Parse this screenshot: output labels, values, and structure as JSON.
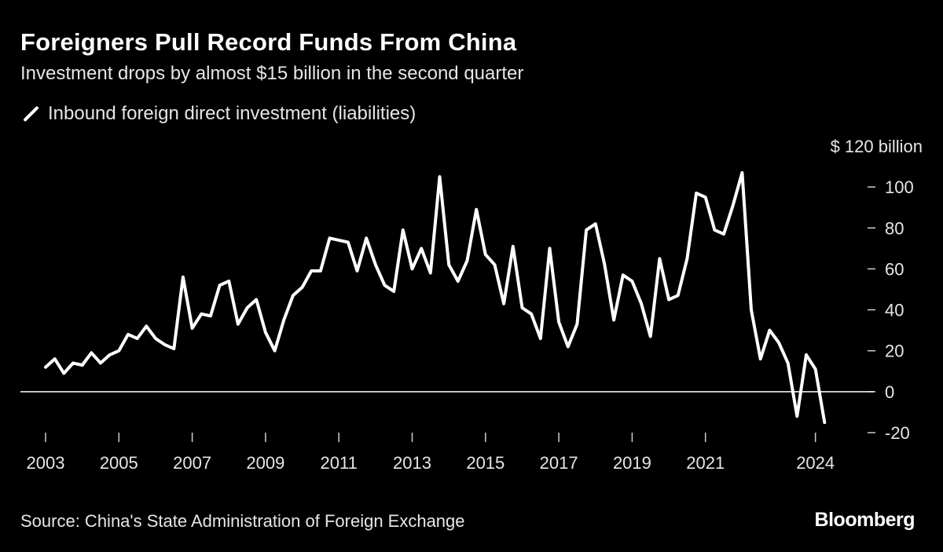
{
  "header": {
    "title": "Foreigners Pull Record Funds From China",
    "subtitle": "Investment drops by almost $15 billion in the second quarter"
  },
  "footer": {
    "source": "Source: China's State Administration of Foreign Exchange",
    "brand": "Bloomberg"
  },
  "colors": {
    "background": "#000000",
    "line": "#ffffff",
    "text": "#ffffff"
  },
  "chart_data": {
    "type": "line",
    "title": "Foreigners Pull Record Funds From China",
    "subtitle": "Investment drops by almost $15 billion in the second quarter",
    "xlabel": "",
    "ylabel": "",
    "y_unit_label": "$ 120 billion",
    "ylim": [
      -20,
      120
    ],
    "yticks": [
      {
        "value": 120,
        "label": "$ 120 billion"
      },
      {
        "value": 100,
        "label": "100"
      },
      {
        "value": 80,
        "label": "80"
      },
      {
        "value": 60,
        "label": "60"
      },
      {
        "value": 40,
        "label": "40"
      },
      {
        "value": 20,
        "label": "20"
      },
      {
        "value": 0,
        "label": "0"
      },
      {
        "value": -20,
        "label": "-20"
      }
    ],
    "xticks": [
      {
        "value": 2003,
        "label": "2003"
      },
      {
        "value": 2005,
        "label": "2005"
      },
      {
        "value": 2007,
        "label": "2007"
      },
      {
        "value": 2009,
        "label": "2009"
      },
      {
        "value": 2011,
        "label": "2011"
      },
      {
        "value": 2013,
        "label": "2013"
      },
      {
        "value": 2015,
        "label": "2015"
      },
      {
        "value": 2017,
        "label": "2017"
      },
      {
        "value": 2019,
        "label": "2019"
      },
      {
        "value": 2021,
        "label": "2021"
      },
      {
        "value": 2024,
        "label": "2024"
      }
    ],
    "zero_line": true,
    "grid": false,
    "legend_position": "top-left",
    "series": [
      {
        "name": "Inbound foreign direct investment (liabilities)",
        "color": "#ffffff",
        "x": [
          "2003Q1",
          "2003Q2",
          "2003Q3",
          "2003Q4",
          "2004Q1",
          "2004Q2",
          "2004Q3",
          "2004Q4",
          "2005Q1",
          "2005Q2",
          "2005Q3",
          "2005Q4",
          "2006Q1",
          "2006Q2",
          "2006Q3",
          "2006Q4",
          "2007Q1",
          "2007Q2",
          "2007Q3",
          "2007Q4",
          "2008Q1",
          "2008Q2",
          "2008Q3",
          "2008Q4",
          "2009Q1",
          "2009Q2",
          "2009Q3",
          "2009Q4",
          "2010Q1",
          "2010Q2",
          "2010Q3",
          "2010Q4",
          "2011Q1",
          "2011Q2",
          "2011Q3",
          "2011Q4",
          "2012Q1",
          "2012Q2",
          "2012Q3",
          "2012Q4",
          "2013Q1",
          "2013Q2",
          "2013Q3",
          "2013Q4",
          "2014Q1",
          "2014Q2",
          "2014Q3",
          "2014Q4",
          "2015Q1",
          "2015Q2",
          "2015Q3",
          "2015Q4",
          "2016Q1",
          "2016Q2",
          "2016Q3",
          "2016Q4",
          "2017Q1",
          "2017Q2",
          "2017Q3",
          "2017Q4",
          "2018Q1",
          "2018Q2",
          "2018Q3",
          "2018Q4",
          "2019Q1",
          "2019Q2",
          "2019Q3",
          "2019Q4",
          "2020Q1",
          "2020Q2",
          "2020Q3",
          "2020Q4",
          "2021Q1",
          "2021Q2",
          "2021Q3",
          "2021Q4",
          "2022Q1",
          "2022Q2",
          "2022Q3",
          "2022Q4",
          "2023Q1",
          "2023Q2",
          "2023Q3",
          "2023Q4",
          "2024Q1",
          "2024Q2"
        ],
        "values": [
          12,
          16,
          9,
          14,
          13,
          19,
          14,
          18,
          20,
          28,
          26,
          32,
          26,
          23,
          21,
          56,
          31,
          38,
          37,
          52,
          54,
          33,
          41,
          45,
          29,
          20,
          35,
          47,
          51,
          59,
          59,
          75,
          74,
          73,
          59,
          75,
          62,
          52,
          49,
          79,
          60,
          70,
          58,
          105,
          62,
          54,
          64,
          89,
          67,
          62,
          43,
          71,
          41,
          38,
          26,
          70,
          34,
          22,
          33,
          79,
          82,
          62,
          35,
          57,
          54,
          43,
          27,
          65,
          45,
          47,
          65,
          97,
          95,
          79,
          77,
          91,
          107,
          40,
          16,
          30,
          24,
          14,
          -12,
          18,
          11,
          -15
        ]
      }
    ]
  }
}
